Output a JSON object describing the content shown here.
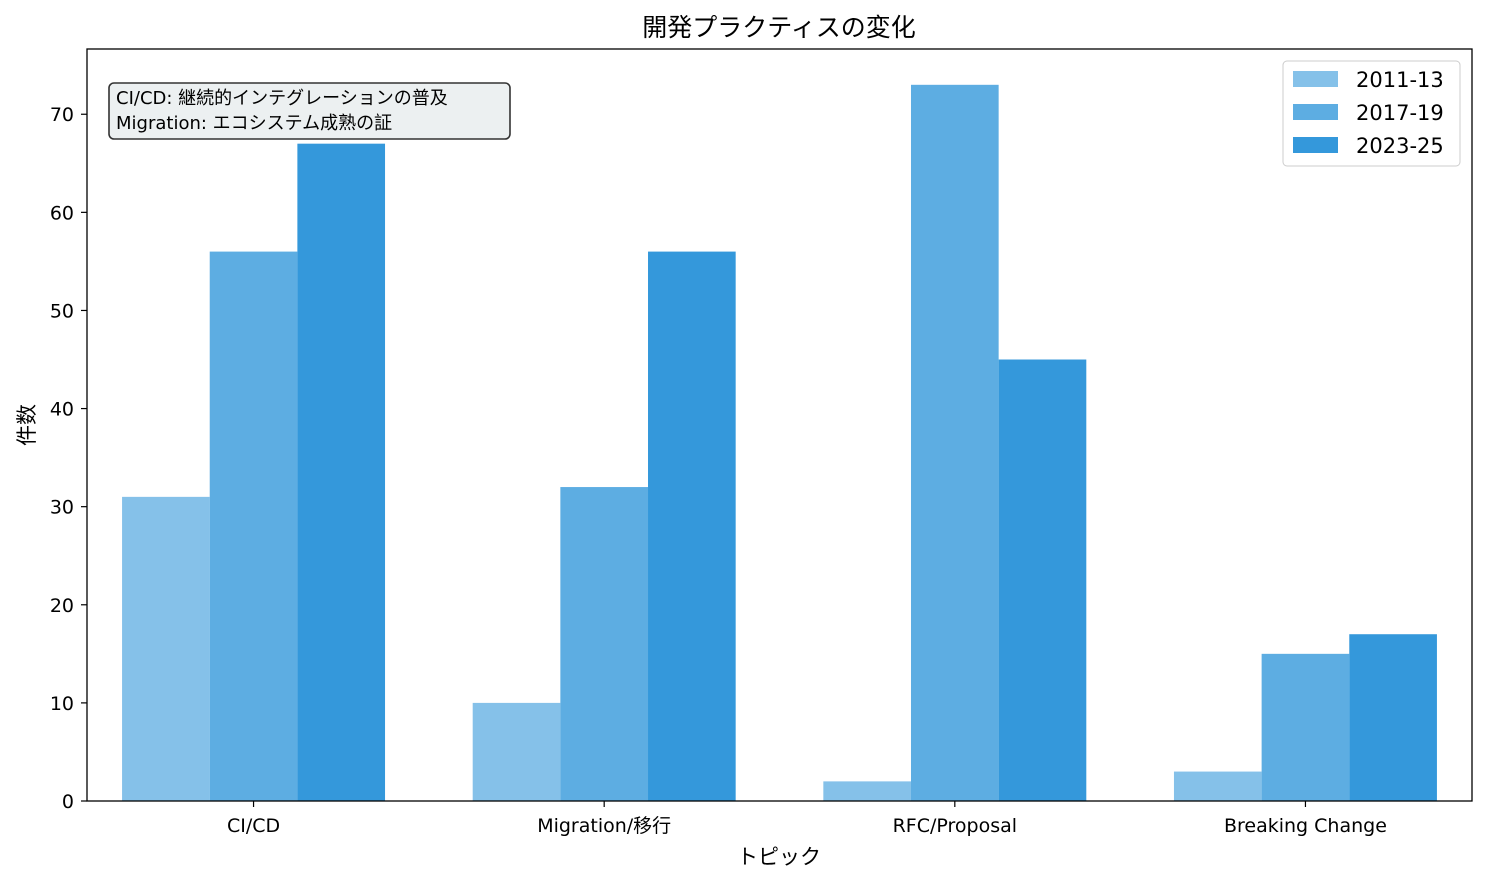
{
  "chart_data": {
    "type": "bar",
    "title": "開発プラクティスの変化",
    "xlabel": "トピック",
    "ylabel": "件数",
    "categories": [
      "CI/CD",
      "Migration/移行",
      "RFC/Proposal",
      "Breaking Change"
    ],
    "series": [
      {
        "name": "2011-13",
        "color": "#85c1e9",
        "values": [
          31,
          10,
          2,
          3
        ]
      },
      {
        "name": "2017-19",
        "color": "#5dade2",
        "values": [
          56,
          32,
          73,
          15
        ]
      },
      {
        "name": "2023-25",
        "color": "#3498db",
        "values": [
          67,
          56,
          45,
          17
        ]
      }
    ],
    "ylim": [
      0,
      76.65
    ],
    "yticks": [
      0,
      10,
      20,
      30,
      40,
      50,
      60,
      70
    ],
    "grid": false,
    "legend_position": "top-right",
    "annotation": {
      "lines": [
        "CI/CD: 継続的インテグレーションの普及",
        "Migration: エコシステム成熟の証"
      ],
      "position": "top-left"
    }
  }
}
